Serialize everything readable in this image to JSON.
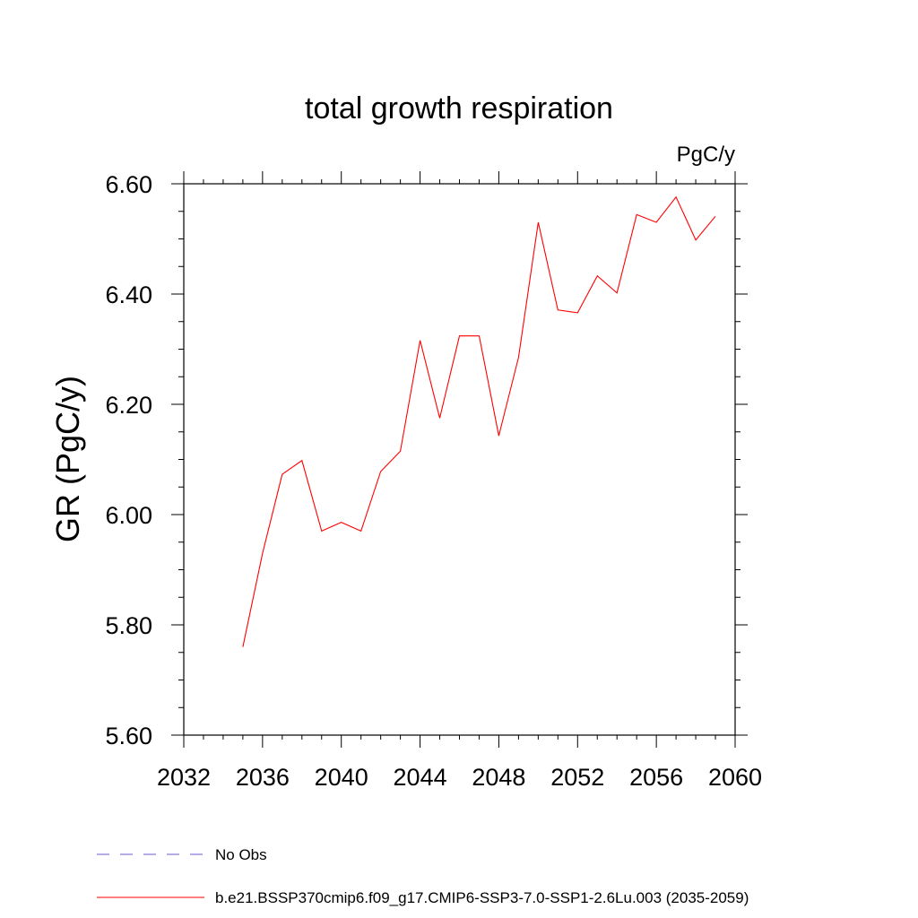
{
  "chart_data": {
    "type": "line",
    "title": "total growth respiration",
    "units_label": "PgC/y",
    "ylabel": "GR  (PgC/y)",
    "xlabel": "",
    "xlim": [
      2032,
      2060
    ],
    "ylim": [
      5.6,
      6.6
    ],
    "x_ticks": [
      2032,
      2036,
      2040,
      2044,
      2048,
      2052,
      2056,
      2060
    ],
    "x_tick_labels": [
      "2032",
      "2036",
      "2040",
      "2044",
      "2048",
      "2052",
      "2056",
      "2060"
    ],
    "y_ticks": [
      5.6,
      5.8,
      6.0,
      6.2,
      6.4,
      6.6
    ],
    "y_tick_labels": [
      "5.60",
      "5.80",
      "6.00",
      "6.20",
      "6.40",
      "6.60"
    ],
    "grid": false,
    "legend_position": "bottom",
    "series": [
      {
        "name": "b.e21.BSSP370cmip6.f09_g17.CMIP6-SSP3-7.0-SSP1-2.6Lu.003 (2035-2059)",
        "color": "#ff0000",
        "x": [
          2035,
          2036,
          2037,
          2038,
          2039,
          2040,
          2041,
          2042,
          2043,
          2044,
          2045,
          2046,
          2047,
          2048,
          2049,
          2050,
          2051,
          2052,
          2053,
          2054,
          2055,
          2056,
          2057,
          2058,
          2059
        ],
        "values": [
          5.76,
          5.93,
          6.073,
          6.098,
          5.97,
          5.986,
          5.97,
          6.078,
          6.115,
          6.316,
          6.175,
          6.324,
          6.324,
          6.143,
          6.285,
          6.53,
          6.371,
          6.366,
          6.433,
          6.402,
          6.544,
          6.53,
          6.576,
          6.498,
          6.541
        ]
      }
    ],
    "legend": [
      {
        "label": "No Obs",
        "style": "dashed",
        "color": "#6a5acd"
      },
      {
        "label": "b.e21.BSSP370cmip6.f09_g17.CMIP6-SSP3-7.0-SSP1-2.6Lu.003 (2035-2059)",
        "style": "solid",
        "color": "#ff0000"
      }
    ]
  }
}
